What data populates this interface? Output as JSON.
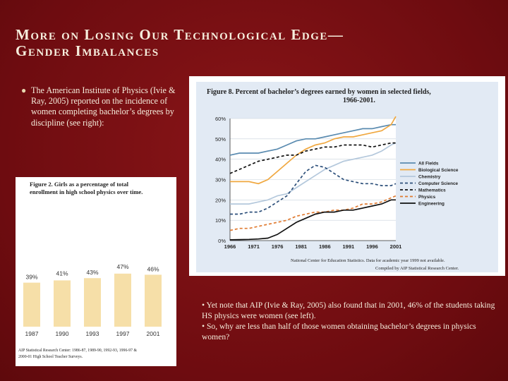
{
  "slide": {
    "title_line1": "More on Losing Our Technological Edge—",
    "title_line2": "Gender Imbalances",
    "bullet_text": "The American Institute of Physics (Ivie & Ray, 2005) reported on the incidence of women completing bachelor’s degrees by discipline (see right):",
    "note1": "• Yet note that AIP (Ivie & Ray, 2005) also found that in 2001, 46% of the students taking HS physics were women (see left).",
    "note2": "• So, why are less than half of those women obtaining bachelor’s degrees in physics women?"
  },
  "fig8": {
    "title_line1": "Figure 8. Percent of bachelor’s degrees earned by women in selected fields,",
    "title_line2": "1966-2001.",
    "source_line1": "National Center for Education Statistics. Data for academic year 1999 not available.",
    "source_line2": "Compiled by AIP Statistical Research Center."
  },
  "fig2": {
    "title_line1": "Figure 2. Girls as a percentage of total",
    "title_line2": "enrollment in high school physics over time.",
    "source_line1": "AIP Statistical Research Center: 1986-87, 1989-90, 1992-93, 1996-97 &",
    "source_line2": "2000-01 High School Teacher Surveys."
  },
  "chart_data": [
    {
      "type": "line",
      "title": "Figure 8. Percent of bachelor’s degrees earned by women in selected fields, 1966-2001.",
      "x": [
        1966,
        1968,
        1970,
        1972,
        1974,
        1976,
        1978,
        1980,
        1982,
        1984,
        1986,
        1988,
        1990,
        1992,
        1994,
        1996,
        1998,
        2000,
        2001
      ],
      "xticks": [
        "1966",
        "1971",
        "1976",
        "1981",
        "1986",
        "1991",
        "1996",
        "2001"
      ],
      "yticks": [
        "0%",
        "10%",
        "20%",
        "30%",
        "40%",
        "50%",
        "60%"
      ],
      "ylim": [
        0,
        60
      ],
      "legend_position": "right",
      "series": [
        {
          "name": "All Fields",
          "color": "#5a8bb0",
          "dash": "solid",
          "values": [
            42,
            43,
            43,
            43,
            44,
            45,
            47,
            49,
            50,
            50,
            51,
            52,
            53,
            54,
            55,
            55,
            56,
            57,
            57
          ]
        },
        {
          "name": "Biological Science",
          "color": "#f0a840",
          "dash": "solid",
          "values": [
            29,
            29,
            29,
            28,
            30,
            34,
            38,
            42,
            45,
            47,
            48,
            50,
            51,
            51,
            52,
            53,
            54,
            57,
            61
          ]
        },
        {
          "name": "Chemistry",
          "color": "#b4c8dc",
          "dash": "solid",
          "values": [
            18,
            18,
            18,
            19,
            20,
            22,
            23,
            26,
            29,
            32,
            35,
            37,
            39,
            40,
            41,
            42,
            44,
            47,
            48
          ]
        },
        {
          "name": "Computer Science",
          "color": "#2c4f7a",
          "dash": "dash",
          "values": [
            13,
            13,
            14,
            14,
            16,
            19,
            22,
            28,
            34,
            37,
            36,
            33,
            30,
            29,
            28,
            28,
            27,
            27,
            28
          ]
        },
        {
          "name": "Mathematics",
          "color": "#101010",
          "dash": "dash",
          "values": [
            33,
            35,
            37,
            39,
            40,
            41,
            42,
            42,
            44,
            45,
            46,
            46,
            47,
            47,
            47,
            46,
            47,
            48,
            48
          ]
        },
        {
          "name": "Physics",
          "color": "#e07a30",
          "dash": "dash",
          "values": [
            5,
            6,
            6,
            7,
            8,
            9,
            10,
            12,
            13,
            14,
            14,
            15,
            15,
            16,
            18,
            18,
            19,
            21,
            22
          ]
        },
        {
          "name": "Engineering",
          "color": "#101010",
          "dash": "solid",
          "values": [
            0.4,
            0.5,
            0.6,
            0.8,
            1.2,
            3,
            6,
            9,
            11,
            13,
            14,
            14,
            15,
            15,
            16,
            17,
            18,
            20,
            20
          ]
        }
      ]
    },
    {
      "type": "bar",
      "title": "Figure 2. Girls as a percentage of total enrollment in high school physics over time.",
      "categories": [
        "1987",
        "1990",
        "1993",
        "1997",
        "2001"
      ],
      "values": [
        39,
        41,
        43,
        47,
        46
      ],
      "labels": [
        "39%",
        "41%",
        "43%",
        "47%",
        "46%"
      ],
      "ylim": [
        0,
        100
      ],
      "bar_color": "#f6dfa8"
    }
  ]
}
